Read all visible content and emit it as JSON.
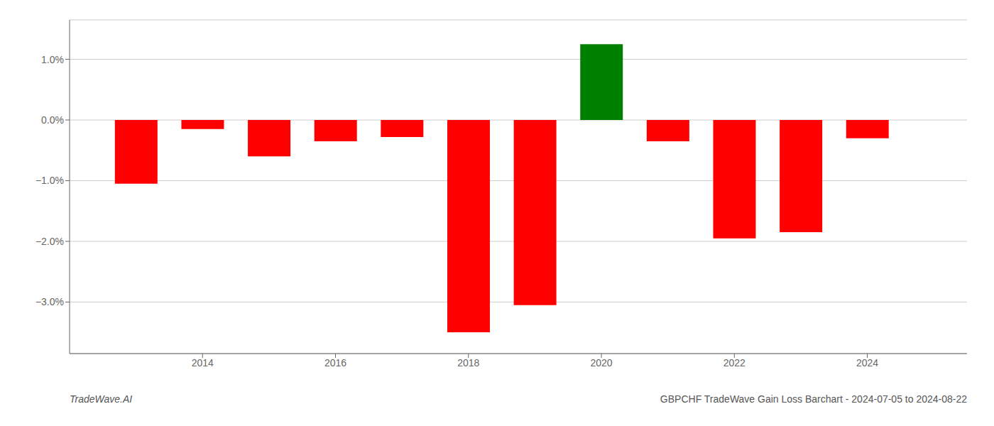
{
  "chart_data": {
    "type": "bar",
    "title": "GBPCHF TradeWave Gain Loss Barchart - 2024-07-05 to 2024-08-22",
    "annotations": [
      "TradeWave.AI"
    ],
    "x": [
      2013,
      2014,
      2015,
      2016,
      2017,
      2018,
      2019,
      2020,
      2021,
      2022,
      2023,
      2024
    ],
    "values": [
      -1.05,
      -0.15,
      -0.6,
      -0.35,
      -0.28,
      -3.5,
      -3.05,
      1.25,
      -0.35,
      -1.95,
      -1.85,
      -0.3
    ],
    "colors": [
      "red",
      "red",
      "red",
      "red",
      "red",
      "red",
      "red",
      "green",
      "red",
      "red",
      "red",
      "red"
    ],
    "xlim": [
      2012.0,
      2025.5
    ],
    "xticks": [
      2014,
      2016,
      2018,
      2020,
      2022,
      2024
    ],
    "ylim": [
      -3.85,
      1.65
    ],
    "yticks": [
      {
        "value": -3.0,
        "label": "−3.0%"
      },
      {
        "value": -2.0,
        "label": "−2.0%"
      },
      {
        "value": -1.0,
        "label": "−1.0%"
      },
      {
        "value": 0.0,
        "label": "0.0%"
      },
      {
        "value": 1.0,
        "label": "1.0%"
      }
    ],
    "grid": "y"
  }
}
